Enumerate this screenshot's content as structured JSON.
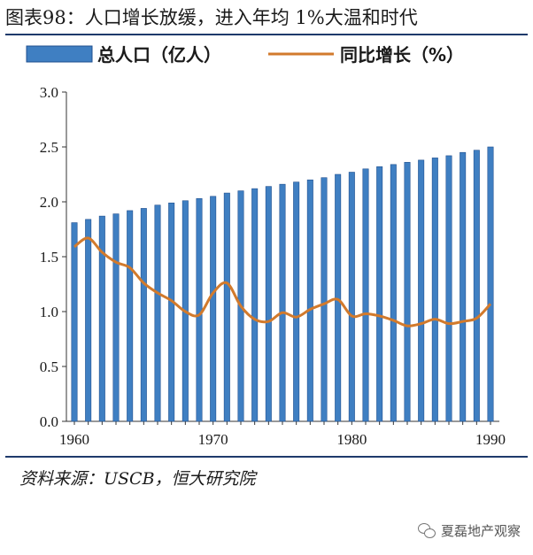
{
  "title": "图表98：人口增长放缓，进入年均 1%大温和时代",
  "source": "资料来源：USCB，恒大研究院",
  "watermark": "夏磊地产观察",
  "colors": {
    "bar": "#3f7fc2",
    "bar_edge": "#1f4f8f",
    "line": "#d27a2c",
    "rule": "#1e3a6b"
  },
  "chart_data": {
    "type": "bar+line",
    "x": [
      1960,
      1961,
      1962,
      1963,
      1964,
      1965,
      1966,
      1967,
      1968,
      1969,
      1970,
      1971,
      1972,
      1973,
      1974,
      1975,
      1976,
      1977,
      1978,
      1979,
      1980,
      1981,
      1982,
      1983,
      1984,
      1985,
      1986,
      1987,
      1988,
      1989,
      1990
    ],
    "xticks": [
      "1960",
      "1970",
      "1980",
      "1990"
    ],
    "yticks": [
      "0.0",
      "0.5",
      "1.0",
      "1.5",
      "2.0",
      "2.5",
      "3.0"
    ],
    "ylim": [
      0,
      3.0
    ],
    "legend_position": "top",
    "series": [
      {
        "name": "总人口（亿人）",
        "type": "bar",
        "values": [
          1.81,
          1.84,
          1.87,
          1.89,
          1.92,
          1.94,
          1.97,
          1.99,
          2.01,
          2.03,
          2.05,
          2.08,
          2.1,
          2.12,
          2.14,
          2.16,
          2.18,
          2.2,
          2.22,
          2.25,
          2.27,
          2.3,
          2.32,
          2.34,
          2.36,
          2.38,
          2.4,
          2.42,
          2.45,
          2.47,
          2.5
        ]
      },
      {
        "name": "同比增长（%）",
        "type": "line",
        "values": [
          1.59,
          1.67,
          1.54,
          1.45,
          1.4,
          1.26,
          1.17,
          1.1,
          1.0,
          0.97,
          1.17,
          1.26,
          1.05,
          0.93,
          0.91,
          0.99,
          0.95,
          1.02,
          1.07,
          1.11,
          0.96,
          0.98,
          0.96,
          0.92,
          0.87,
          0.89,
          0.93,
          0.89,
          0.91,
          0.94,
          1.07
        ]
      }
    ]
  }
}
